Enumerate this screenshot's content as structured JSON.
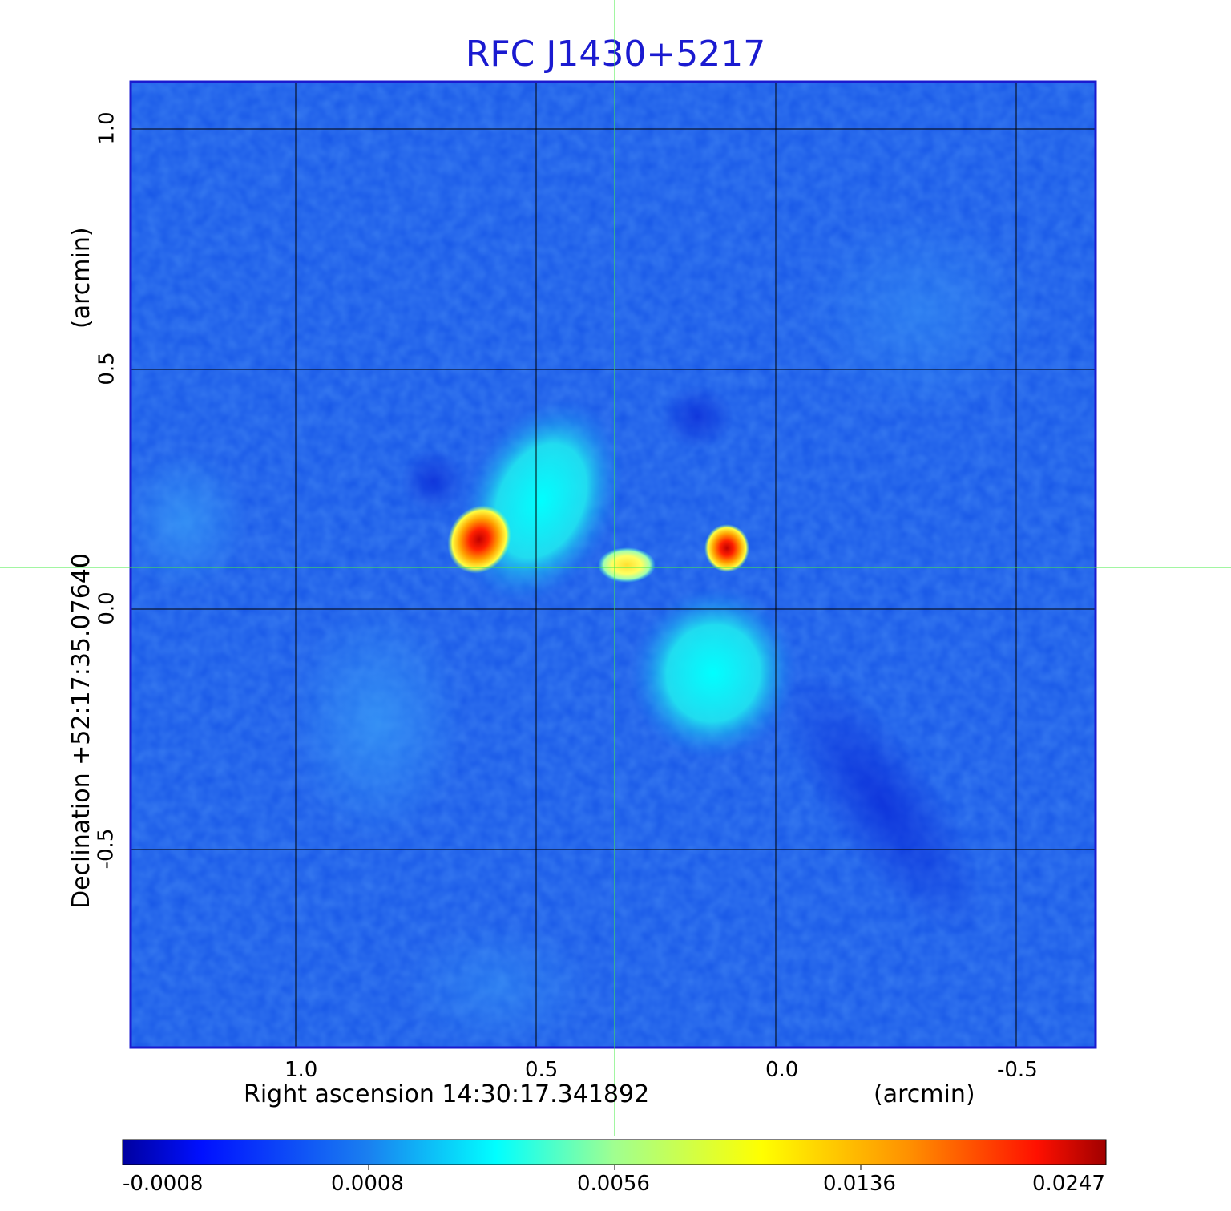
{
  "title": "RFC J1430+5217",
  "x_axis": {
    "label": "Right ascension  14:30:17.341892",
    "unit": "(arcmin)",
    "ticks": [
      "1.0",
      "0.5",
      "0.0",
      "-0.5"
    ]
  },
  "y_axis": {
    "label": "Declination  +52:17:35.07640",
    "unit": "(arcmin)",
    "ticks": [
      "1.0",
      "0.5",
      "0.0",
      "-0.5"
    ]
  },
  "colorbar": {
    "ticks": [
      "-0.0008",
      "0.0008",
      "0.0056",
      "0.0136",
      "0.0247"
    ]
  },
  "colors": {
    "title": "#1a1ad0",
    "frame": "#1a1ad0",
    "crosshair": "#44ee44",
    "grid": "#000000"
  },
  "grid": true,
  "crosshair": true
}
